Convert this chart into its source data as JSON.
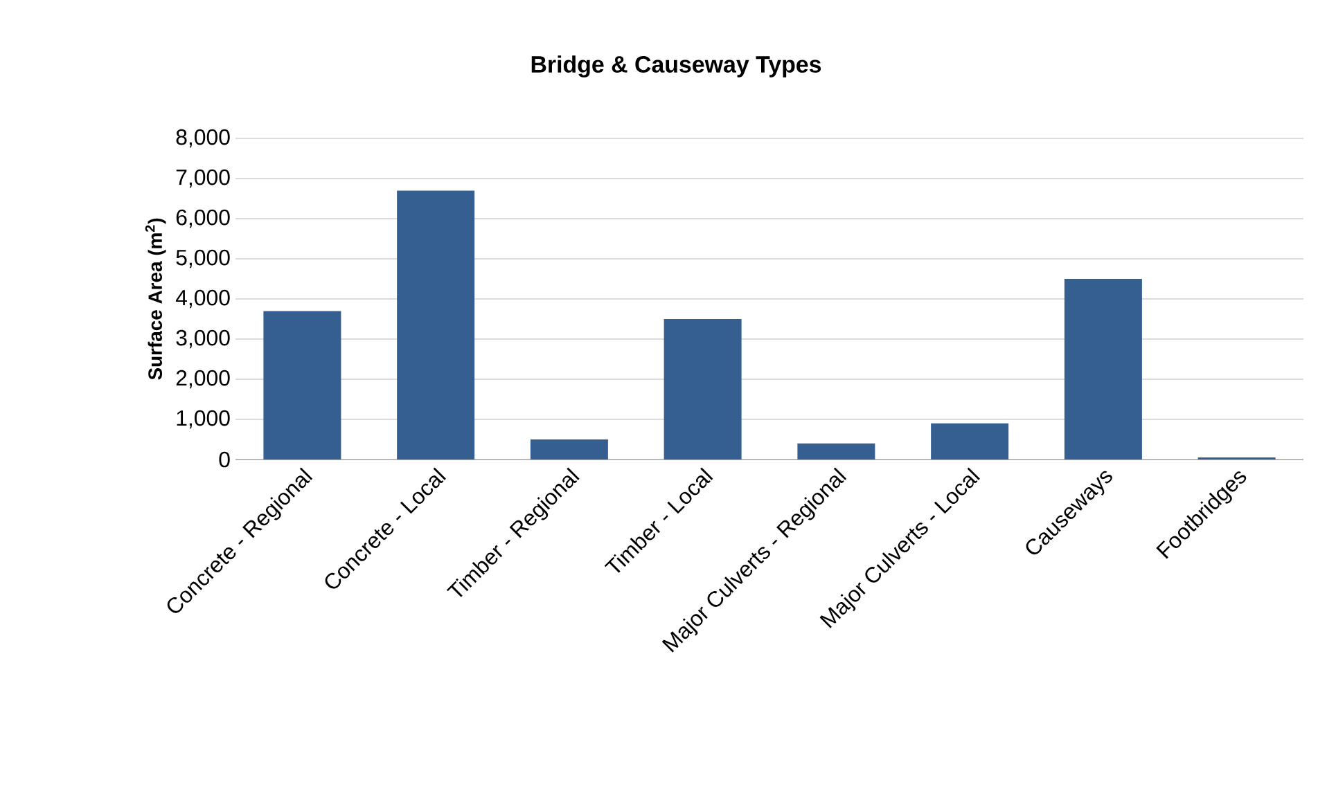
{
  "chart_data": {
    "type": "bar",
    "title": "Bridge & Causeway Types",
    "ylabel": "Surface Area (m$^{2}$)",
    "categories": [
      "Concrete - Regional",
      "Concrete - Local",
      "Timber - Regional",
      "Timber - Local",
      "Major Culverts - Regional",
      "Major Culverts - Local",
      "Causeways",
      "Footbridges"
    ],
    "values": [
      3700,
      6700,
      500,
      3500,
      400,
      900,
      4500,
      50
    ],
    "color": "#355f91",
    "ylim": [
      0,
      8000
    ],
    "yticks": [
      {
        "value": 0,
        "label": "0"
      },
      {
        "value": 1000,
        "label": "1,000"
      },
      {
        "value": 2000,
        "label": "2,000"
      },
      {
        "value": 3000,
        "label": "3,000"
      },
      {
        "value": 4000,
        "label": "4,000"
      },
      {
        "value": 5000,
        "label": "5,000"
      },
      {
        "value": 6000,
        "label": "6,000"
      },
      {
        "value": 7000,
        "label": "7,000"
      },
      {
        "value": 8000,
        "label": "8,000"
      }
    ],
    "grid": "y"
  }
}
